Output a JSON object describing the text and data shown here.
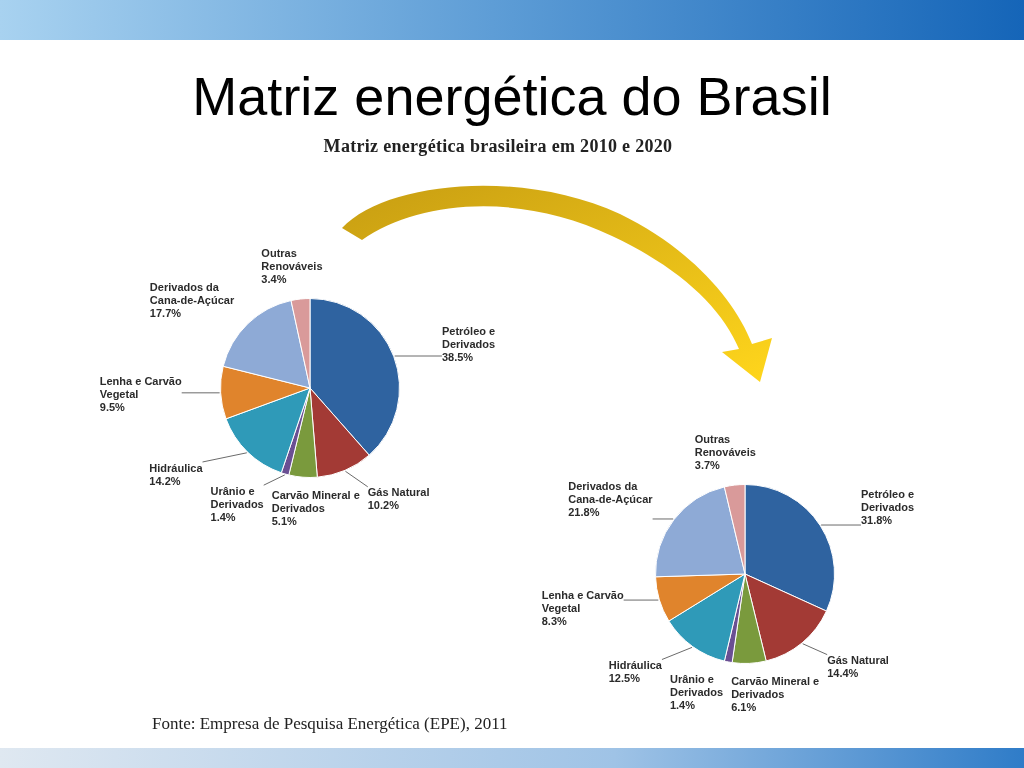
{
  "chart_data": [
    {
      "type": "pie",
      "title": "Matriz energética do Brasil",
      "subtitle": "Matriz energética brasileira em 2010 e 2020",
      "annotations": [
        "Fonte: Empresa de Pesquisa Energética (EPE), 2011"
      ],
      "categories": [
        "Petróleo e Derivados",
        "Gás Natural",
        "Carvão Mineral e Derivados",
        "Urânio e Derivados",
        "Hidráulica",
        "Lenha e Carvão Vegetal",
        "Derivados da Cana-de-Açúcar",
        "Outras Renováveis"
      ],
      "values": [
        38.5,
        10.2,
        5.1,
        1.4,
        14.2,
        9.5,
        17.7,
        3.4
      ],
      "value_labels": [
        "38.5%",
        "10.2%",
        "5.1%",
        "1.4%",
        "14.2%",
        "9.5%",
        "17.7%",
        "3.4%"
      ],
      "colors": [
        "#2f63a0",
        "#a33a35",
        "#7a9a3d",
        "#6a4f93",
        "#2f9ab8",
        "#e0842c",
        "#8eaad6",
        "#d99a9a"
      ]
    },
    {
      "type": "pie",
      "categories": [
        "Petróleo e Derivados",
        "Gás Natural",
        "Carvão Mineral e Derivados",
        "Urânio e Derivados",
        "Hidráulica",
        "Lenha e Carvão Vegetal",
        "Derivados da Cana-de-Açúcar",
        "Outras Renováveis"
      ],
      "values": [
        31.8,
        14.4,
        6.1,
        1.4,
        12.5,
        8.3,
        21.8,
        3.7
      ],
      "value_labels": [
        "31.8%",
        "14.4%",
        "6.1%",
        "1.4%",
        "12.5%",
        "8.3%",
        "21.8%",
        "3.7%"
      ],
      "colors": [
        "#2f63a0",
        "#a33a35",
        "#7a9a3d",
        "#6a4f93",
        "#2f9ab8",
        "#e0842c",
        "#8eaad6",
        "#d99a9a"
      ]
    }
  ]
}
